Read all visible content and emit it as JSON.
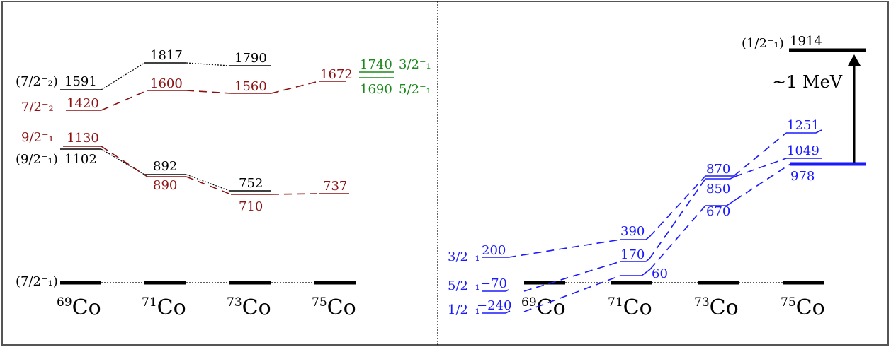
{
  "colors": {
    "black": "#000000",
    "exp_red": "#8b1212",
    "green": "#1a8a1a",
    "blue": "#1a1aff",
    "frame": "#555555"
  },
  "isotopes": [
    {
      "mass": "69",
      "symbol": "Co"
    },
    {
      "mass": "71",
      "symbol": "Co"
    },
    {
      "mass": "73",
      "symbol": "Co"
    },
    {
      "mass": "75",
      "symbol": "Co"
    }
  ],
  "left_panel": {
    "ground_label": "(7/2⁻₁)",
    "black_labels": {
      "seven_half_2": "(7/2⁻₂)",
      "nine_half_1": "(9/2⁻₁)"
    },
    "red_labels": {
      "seven_half_2": "7/2⁻₂",
      "nine_half_1": "9/2⁻₁"
    },
    "black_upper": [
      "1591",
      "1817",
      "1790"
    ],
    "red_upper": [
      "1420",
      "1600",
      "1560",
      "1672"
    ],
    "black_lower": [
      "1102",
      "892",
      "752"
    ],
    "red_lower": [
      "1130",
      "890",
      "710",
      "737"
    ],
    "green_levels": [
      {
        "value": "1740",
        "spin": "3/2⁻₁"
      },
      {
        "value": "1690",
        "spin": "5/2⁻₁"
      }
    ]
  },
  "right_panel": {
    "top_level": {
      "label": "(1/2⁻₁)",
      "value": "1914"
    },
    "arrow_label": "~1 MeV",
    "spins": [
      "3/2⁻₁",
      "5/2⁻₁",
      "1/2⁻₁"
    ],
    "col69": [
      "200",
      "−70",
      "−240"
    ],
    "col71": [
      "390",
      "170",
      "60"
    ],
    "col73": [
      "870",
      "850",
      "670"
    ],
    "col75": [
      "1251",
      "1049",
      "978"
    ]
  }
}
